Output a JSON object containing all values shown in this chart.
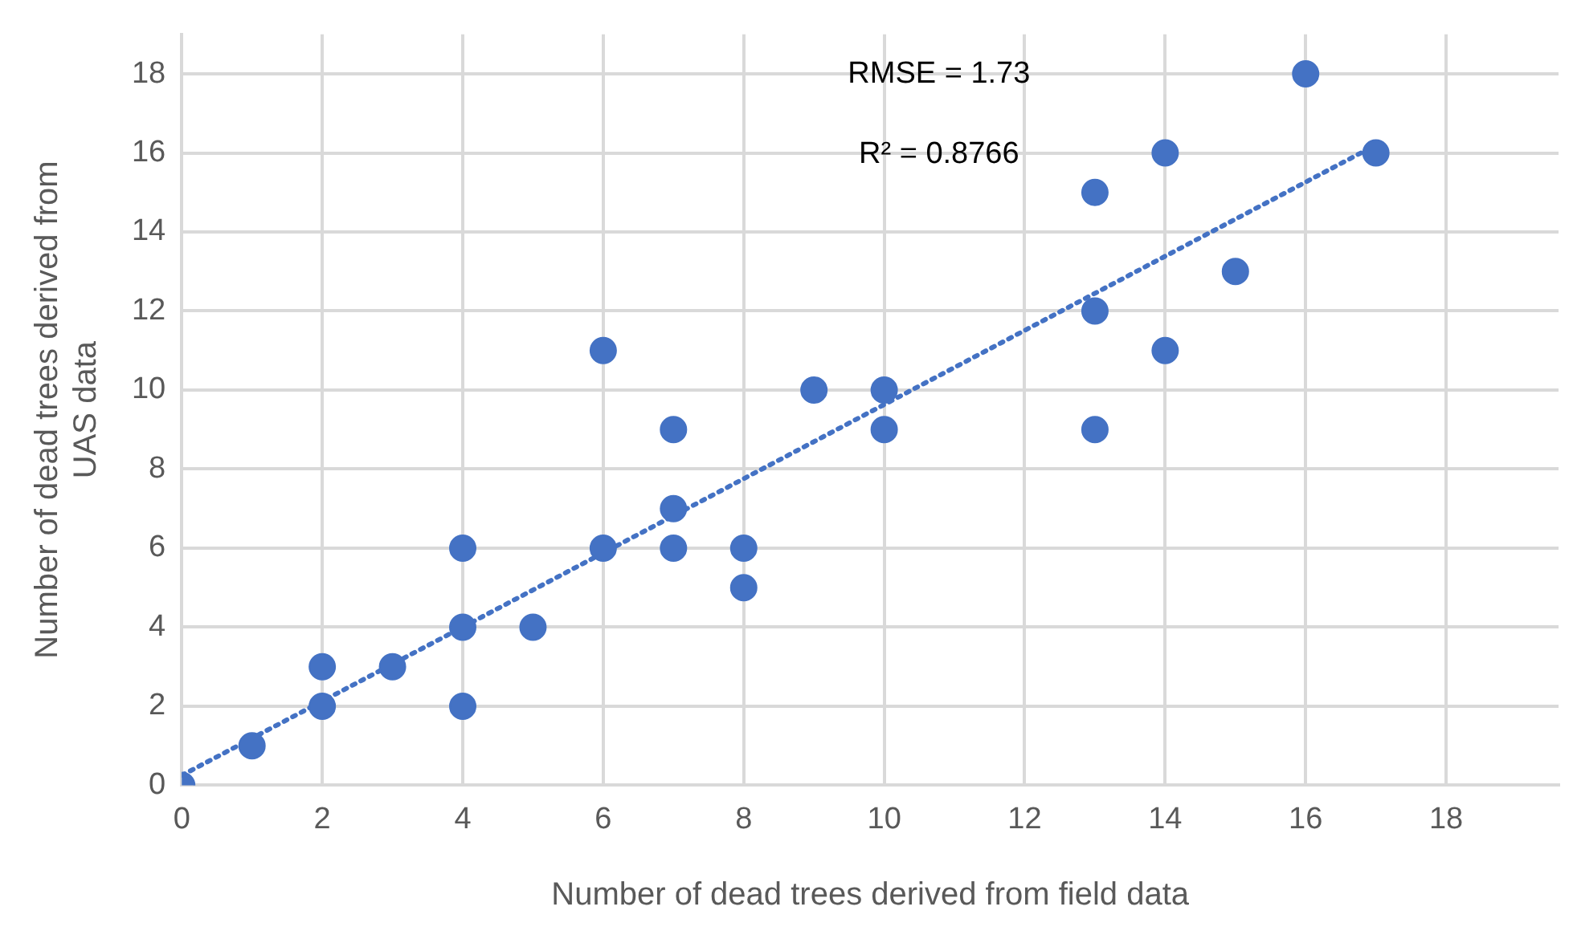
{
  "chart_data": {
    "type": "scatter",
    "xlabel": "Number of dead trees derived from field data",
    "ylabel": "Number of dead trees derived from UAS data",
    "xlim": [
      0,
      19.6
    ],
    "xticks": [
      0,
      2,
      4,
      6,
      8,
      10,
      12,
      14,
      16,
      18
    ],
    "ylim": [
      0,
      19
    ],
    "yticks": [
      0,
      2,
      4,
      6,
      8,
      10,
      12,
      14,
      16,
      18
    ],
    "grid": true,
    "legend": false,
    "marker": "circle",
    "series": [
      {
        "color": "#4472c4",
        "x": [
          0,
          1,
          2,
          2,
          3,
          4,
          4,
          4,
          5,
          6,
          6,
          7,
          7,
          7,
          8,
          8,
          9,
          10,
          10,
          13,
          13,
          13,
          14,
          14,
          15,
          16,
          17
        ],
        "values": [
          0,
          1,
          3,
          2,
          3,
          6,
          4,
          2,
          4,
          11,
          6,
          9,
          7,
          6,
          6,
          5,
          10,
          10,
          9,
          15,
          12,
          9,
          16,
          11,
          13,
          18,
          16
        ]
      },
      {
        "type": "line",
        "color": "#4472c4",
        "line_style": "dotted",
        "marker": "none",
        "x": [
          0,
          17
        ],
        "values": [
          0.25,
          16.2
        ]
      }
    ],
    "annotations": [
      "RMSE = 1.73",
      "R² = 0.8766"
    ]
  }
}
